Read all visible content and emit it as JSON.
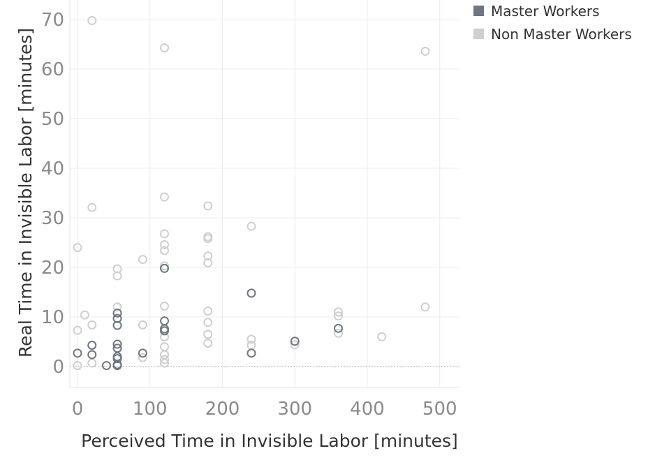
{
  "chart_data": {
    "type": "scatter",
    "title": "",
    "xlabel": "Perceived Time in Invisible Labor [minutes]",
    "ylabel": "Real Time in Invisible Labor [minutes]",
    "xlim": [
      -10,
      520
    ],
    "ylim": [
      -4,
      73
    ],
    "x_ticks": [
      0,
      100,
      200,
      300,
      400,
      500
    ],
    "y_ticks": [
      0,
      10,
      20,
      30,
      40,
      50,
      60,
      70
    ],
    "grid": true,
    "legend_position": "top-right",
    "series": [
      {
        "name": "Master Workers",
        "color": "#6e7682",
        "points": [
          [
            0,
            2.7
          ],
          [
            20,
            2.4
          ],
          [
            20,
            4.3
          ],
          [
            40,
            0.2
          ],
          [
            55,
            0.2
          ],
          [
            55,
            0.4
          ],
          [
            55,
            1.6
          ],
          [
            55,
            2.0
          ],
          [
            55,
            3.7
          ],
          [
            55,
            4.5
          ],
          [
            55,
            8.3
          ],
          [
            55,
            9.7
          ],
          [
            55,
            10.8
          ],
          [
            90,
            2.7
          ],
          [
            120,
            7.2
          ],
          [
            120,
            7.6
          ],
          [
            120,
            9.2
          ],
          [
            120,
            19.8
          ],
          [
            240,
            2.7
          ],
          [
            240,
            14.8
          ],
          [
            300,
            5.1
          ],
          [
            360,
            7.7
          ]
        ]
      },
      {
        "name": "Non Master Workers",
        "color": "#cfcfcf",
        "points": [
          [
            0,
            0.2
          ],
          [
            0,
            7.3
          ],
          [
            0,
            24.0
          ],
          [
            10,
            10.4
          ],
          [
            20,
            0.7
          ],
          [
            20,
            8.4
          ],
          [
            20,
            32.1
          ],
          [
            20,
            69.8
          ],
          [
            55,
            12.0
          ],
          [
            55,
            18.3
          ],
          [
            55,
            19.7
          ],
          [
            90,
            1.8
          ],
          [
            90,
            8.4
          ],
          [
            90,
            21.6
          ],
          [
            120,
            0.7
          ],
          [
            120,
            1.4
          ],
          [
            120,
            2.4
          ],
          [
            120,
            4.0
          ],
          [
            120,
            6.0
          ],
          [
            120,
            12.2
          ],
          [
            120,
            20.3
          ],
          [
            120,
            23.4
          ],
          [
            120,
            24.6
          ],
          [
            120,
            26.8
          ],
          [
            120,
            34.2
          ],
          [
            120,
            64.3
          ],
          [
            180,
            4.7
          ],
          [
            180,
            6.5
          ],
          [
            180,
            8.9
          ],
          [
            180,
            11.2
          ],
          [
            180,
            20.9
          ],
          [
            180,
            22.3
          ],
          [
            180,
            25.8
          ],
          [
            180,
            26.2
          ],
          [
            180,
            32.4
          ],
          [
            240,
            4.3
          ],
          [
            240,
            5.5
          ],
          [
            240,
            28.3
          ],
          [
            300,
            4.4
          ],
          [
            360,
            6.7
          ],
          [
            360,
            10.2
          ],
          [
            360,
            11.0
          ],
          [
            420,
            6.0
          ],
          [
            480,
            12.0
          ],
          [
            480,
            63.6
          ]
        ]
      }
    ]
  }
}
